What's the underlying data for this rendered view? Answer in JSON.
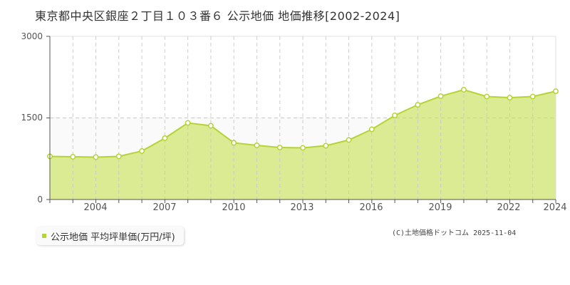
{
  "title": "東京都中央区銀座２丁目１０３番６ 公示地価 地価推移[2002-2024]",
  "legend": {
    "label": "公示地価 平均坪単価(万円/坪)",
    "color": "#b5d334"
  },
  "credit": "(C)土地価格ドットコム 2025-11-04",
  "y_axis": {
    "ticks": [
      "3000",
      "1500",
      "0"
    ]
  },
  "x_axis": {
    "ticks": [
      "2004",
      "2007",
      "2010",
      "2013",
      "2016",
      "2019",
      "2022",
      "2024"
    ]
  },
  "colors": {
    "fill": "#dbeb94",
    "line": "#b5d334",
    "grid": "#c8c8c8",
    "upper_band": "#fbfafa"
  },
  "chart_data": {
    "type": "area",
    "title": "東京都中央区銀座２丁目１０３番６ 公示地価 地価推移[2002-2024]",
    "xlabel": "",
    "ylabel": "",
    "ylim": [
      0,
      3000
    ],
    "yticks": [
      0,
      1500,
      3000
    ],
    "grid": true,
    "legend_position": "bottom-left",
    "x": [
      2002,
      2003,
      2004,
      2005,
      2006,
      2007,
      2008,
      2009,
      2010,
      2011,
      2012,
      2013,
      2014,
      2015,
      2016,
      2017,
      2018,
      2019,
      2020,
      2021,
      2022,
      2023,
      2024
    ],
    "series": [
      {
        "name": "公示地価 平均坪単価(万円/坪)",
        "values": [
          793,
          786,
          780,
          793,
          891,
          1127,
          1408,
          1356,
          1042,
          996,
          956,
          950,
          989,
          1094,
          1290,
          1546,
          1742,
          1900,
          2018,
          1893,
          1873,
          1893,
          1991
        ]
      }
    ]
  }
}
